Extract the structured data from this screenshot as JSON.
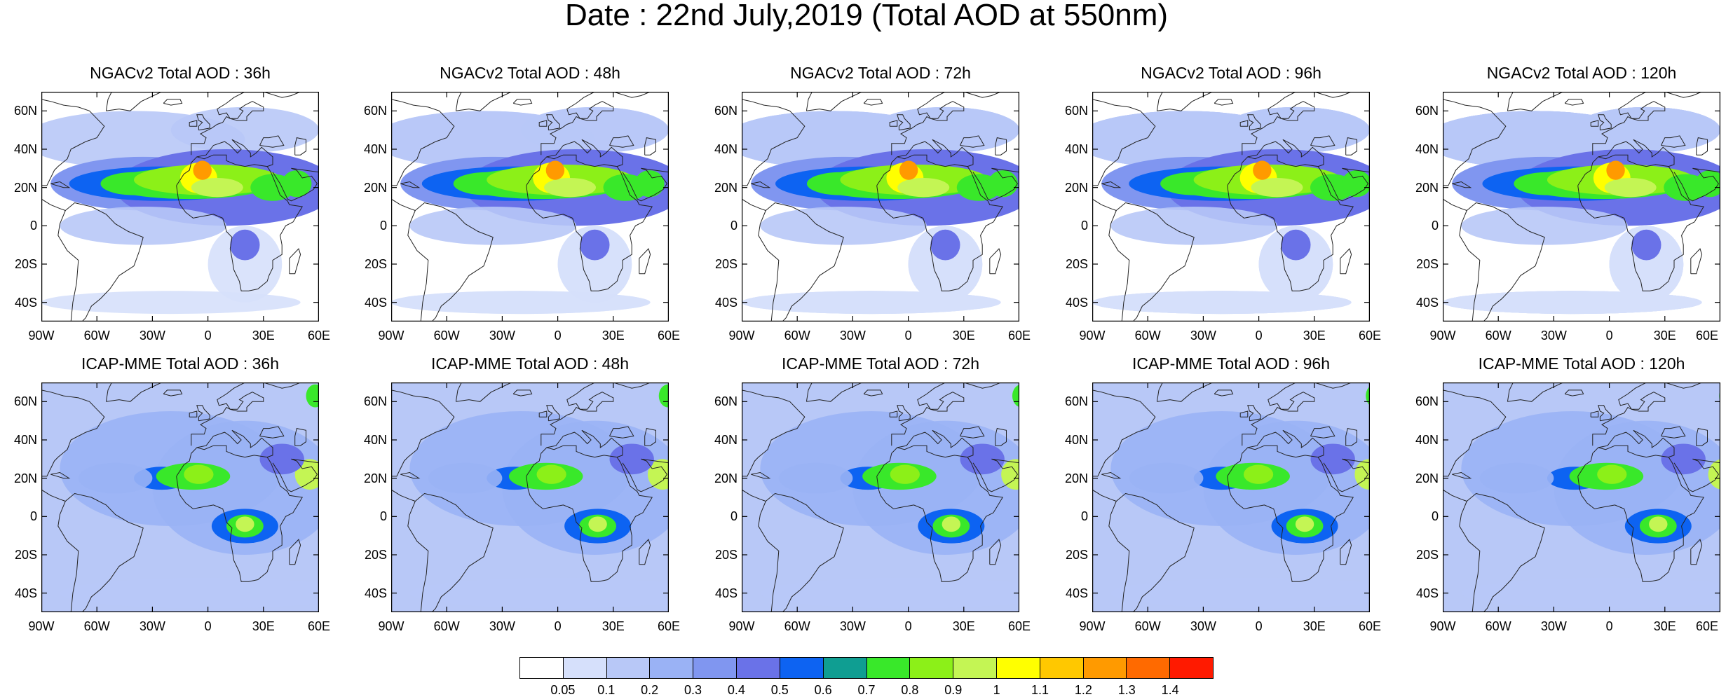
{
  "title": "Date : 22nd July,2019 (Total AOD at 550nm)",
  "panels": [
    {
      "title": "NGACv2 Total AOD : 36h",
      "model": "ngac",
      "variant": 0
    },
    {
      "title": "NGACv2 Total AOD : 48h",
      "model": "ngac",
      "variant": 1
    },
    {
      "title": "NGACv2 Total AOD : 72h",
      "model": "ngac",
      "variant": 2
    },
    {
      "title": "NGACv2 Total AOD : 96h",
      "model": "ngac",
      "variant": 3
    },
    {
      "title": "NGACv2 Total AOD : 120h",
      "model": "ngac",
      "variant": 4
    },
    {
      "title": "ICAP-MME Total AOD : 36h",
      "model": "icap",
      "variant": 0
    },
    {
      "title": "ICAP-MME Total AOD : 48h",
      "model": "icap",
      "variant": 1
    },
    {
      "title": "ICAP-MME Total AOD : 72h",
      "model": "icap",
      "variant": 2
    },
    {
      "title": "ICAP-MME Total AOD : 96h",
      "model": "icap",
      "variant": 3
    },
    {
      "title": "ICAP-MME Total AOD : 120h",
      "model": "icap",
      "variant": 4
    }
  ],
  "map_extent": {
    "lon": [
      -90,
      60
    ],
    "lat": [
      -50,
      70
    ]
  },
  "lat_ticks": [
    {
      "value": 60,
      "label": "60N"
    },
    {
      "value": 40,
      "label": "40N"
    },
    {
      "value": 20,
      "label": "20N"
    },
    {
      "value": 0,
      "label": "0"
    },
    {
      "value": -20,
      "label": "20S"
    },
    {
      "value": -40,
      "label": "40S"
    }
  ],
  "lon_ticks": [
    {
      "value": -90,
      "label": "90W"
    },
    {
      "value": -60,
      "label": "60W"
    },
    {
      "value": -30,
      "label": "30W"
    },
    {
      "value": 0,
      "label": "0"
    },
    {
      "value": 30,
      "label": "30E"
    },
    {
      "value": 60,
      "label": "60E"
    }
  ],
  "colorbar": {
    "colors": [
      "#ffffff",
      "#d6e0fb",
      "#b8c8f7",
      "#9ab2f5",
      "#8096f0",
      "#6a72e8",
      "#0d63f2",
      "#0f9e92",
      "#39e82a",
      "#8cf018",
      "#c4f554",
      "#ffff00",
      "#ffc800",
      "#ff9a00",
      "#ff6a00",
      "#ff1a00"
    ],
    "labels": [
      "0.05",
      "0.1",
      "0.2",
      "0.3",
      "0.4",
      "0.5",
      "0.6",
      "0.7",
      "0.8",
      "0.9",
      "1",
      "1.1",
      "1.2",
      "1.3",
      "1.4"
    ]
  }
}
